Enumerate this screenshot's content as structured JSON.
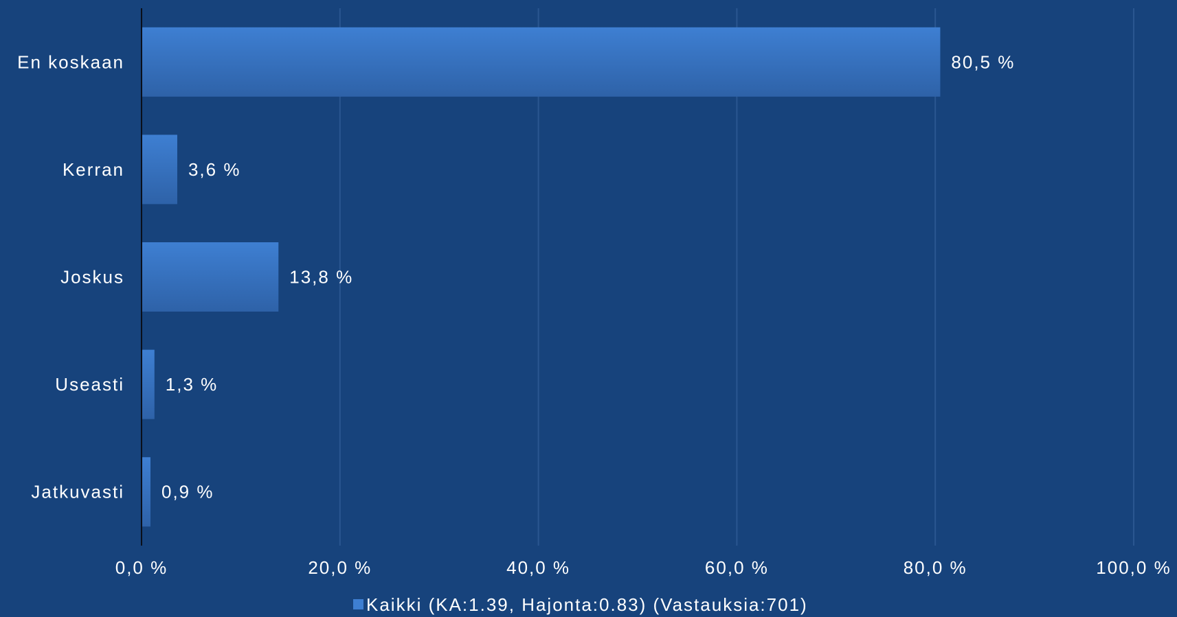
{
  "chart_data": {
    "type": "bar",
    "orientation": "horizontal",
    "categories": [
      "En koskaan",
      "Kerran",
      "Joskus",
      "Useasti",
      "Jatkuvasti"
    ],
    "series": [
      {
        "name": "Kaikki (KA:1.39, Hajonta:0.83) (Vastauksia:701)",
        "values": [
          80.5,
          3.6,
          13.8,
          1.3,
          0.9
        ],
        "labels": [
          "80,5 %",
          "3,6 %",
          "13,8 %",
          "1,3 %",
          "0,9 %"
        ]
      }
    ],
    "xlim": [
      0,
      100
    ],
    "xticks": [
      0,
      20,
      40,
      60,
      80,
      100
    ],
    "xtick_labels": [
      "0,0 %",
      "20,0 %",
      "40,0 %",
      "60,0 %",
      "80,0 %",
      "100,0 %"
    ],
    "grid": true,
    "legend_position": "bottom",
    "colors": {
      "background": "#17437c",
      "bar_top": "#3e7fd2",
      "bar_bottom": "#2e62a8",
      "grid": "#2a5690",
      "axis": "#0a0f1a",
      "text": "#ffffff"
    }
  }
}
